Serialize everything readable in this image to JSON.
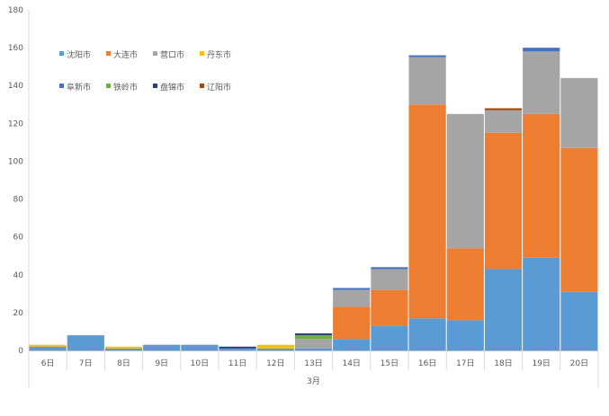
{
  "chart_data": {
    "type": "bar",
    "stacked": true,
    "x_group_label": "3月",
    "categories": [
      "6日",
      "7日",
      "8日",
      "9日",
      "10日",
      "11日",
      "12日",
      "13日",
      "14日",
      "15日",
      "16日",
      "17日",
      "18日",
      "19日",
      "20日"
    ],
    "ylim": [
      0,
      180
    ],
    "yticks": [
      0,
      20,
      40,
      60,
      80,
      100,
      120,
      140,
      160,
      180
    ],
    "legend_position": "top-left",
    "series": [
      {
        "name": "沈阳市",
        "color": "#5B9BD5",
        "values": [
          2,
          8,
          1,
          3,
          3,
          1,
          1,
          1,
          6,
          13,
          17,
          16,
          43,
          49,
          31
        ]
      },
      {
        "name": "大连市",
        "color": "#ED7D31",
        "values": [
          0,
          0,
          0,
          0,
          0,
          0,
          0,
          0,
          17,
          19,
          113,
          38,
          72,
          76,
          76
        ]
      },
      {
        "name": "营口市",
        "color": "#A5A5A5",
        "values": [
          0,
          0,
          0,
          0,
          0,
          0,
          0,
          5,
          9,
          11,
          25,
          71,
          12,
          33,
          37
        ]
      },
      {
        "name": "丹东市",
        "color": "#FFC000",
        "values": [
          1,
          0,
          1,
          0,
          0,
          0,
          2,
          0,
          0,
          0,
          0,
          0,
          0,
          0,
          0
        ]
      },
      {
        "name": "阜新市",
        "color": "#4472C4",
        "values": [
          0,
          0,
          0,
          0,
          0,
          0,
          0,
          0,
          1,
          1,
          1,
          0,
          0,
          2,
          0
        ]
      },
      {
        "name": "铁岭市",
        "color": "#70AD47",
        "values": [
          0,
          0,
          0,
          0,
          0,
          0,
          0,
          2,
          0,
          0,
          0,
          0,
          0,
          0,
          0
        ]
      },
      {
        "name": "盘锦市",
        "color": "#264478",
        "values": [
          0,
          0,
          0,
          0,
          0,
          1,
          0,
          1,
          0,
          0,
          0,
          0,
          0,
          0,
          0
        ]
      },
      {
        "name": "辽阳市",
        "color": "#9E480E",
        "values": [
          0,
          0,
          0,
          0,
          0,
          0,
          0,
          0,
          0,
          0,
          0,
          0,
          1,
          0,
          0
        ]
      }
    ]
  }
}
